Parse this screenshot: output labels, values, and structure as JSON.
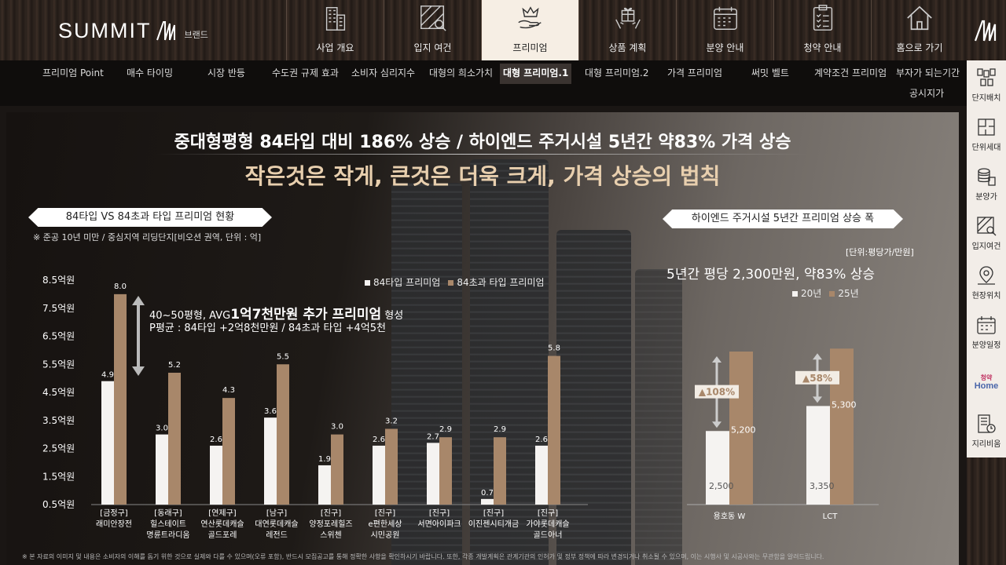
{
  "header": {
    "logo_text": "SUMMIT",
    "logo_sub": "브랜드",
    "nav": [
      {
        "label": "사업 개요",
        "icon": "building-icon"
      },
      {
        "label": "입지 여건",
        "icon": "map-search-icon"
      },
      {
        "label": "프리미엄",
        "icon": "crown-hand-icon",
        "active": true
      },
      {
        "label": "상품 계획",
        "icon": "gift-hands-icon"
      },
      {
        "label": "분양 안내",
        "icon": "calendar-icon"
      },
      {
        "label": "청약 안내",
        "icon": "clipboard-check-icon"
      },
      {
        "label": "홈으로 가기",
        "icon": "home-icon"
      }
    ]
  },
  "subnav": [
    {
      "label": "프리미엄 Point"
    },
    {
      "label": "매수 타이밍"
    },
    {
      "label": "시장 반등"
    },
    {
      "label": "수도권 규제 효과"
    },
    {
      "label": "소비자 심리지수"
    },
    {
      "label": "대형의 희소가치"
    },
    {
      "label": "대형 프리미엄.1",
      "active": true
    },
    {
      "label": "대형 프리미엄.2"
    },
    {
      "label": "가격 프리미엄"
    },
    {
      "label": "써밋 벨트"
    },
    {
      "label": "계약조건 프리미엄"
    },
    {
      "label": "부자가 되는기간"
    },
    {
      "label": "공시지가"
    }
  ],
  "sidebar": [
    {
      "label": "단지배치",
      "icon": "site-plan-icon"
    },
    {
      "label": "단위세대",
      "icon": "floor-plan-icon"
    },
    {
      "label": "분양가",
      "icon": "coins-icon"
    },
    {
      "label": "입지여건",
      "icon": "map-search-icon"
    },
    {
      "label": "현장위치",
      "icon": "location-pin-icon"
    },
    {
      "label": "분양일정",
      "icon": "calendar-icon"
    },
    {
      "label": "",
      "icon": "cheongyak-home-logo",
      "logo_top": "청약",
      "logo_bottom": "Home"
    },
    {
      "label": "지리비움",
      "icon": "building-clock-icon"
    }
  ],
  "content": {
    "headline1": "중대형평형 84타입 대비 186% 상승 / 하이엔드 주거시설 5년간 약83% 가격 상승",
    "headline2": "작은것은 작게, 큰것은 더욱 크게, 가격 상승의 법칙",
    "left_pill": "84타입 VS 84초과 타입 프리미엄 현황",
    "left_note": "※ 준공 10년 미만 / 중심지역 리딩단지[비오션 권역, 단위 : 억]",
    "legend_a": "84타입 프리미엄",
    "legend_b": "84초과 타입 프리미엄",
    "anno1_prefix": "40~50평형, AVG",
    "anno1_bold": "1억7천만원 추가 프리미엄",
    "anno1_suffix": " 형성",
    "anno2": "P평균 : 84타입 +2억8천만원 / 84초과 타입 +4억5천",
    "right_pill": "하이엔드 주거시설  5년간 프리미엄 상승 폭",
    "right_unit": "[단위:평당가/만원]",
    "right_head": "5년간 평당 2,300만원, 약83% 상승",
    "right_legend_a": "20년",
    "right_legend_b": "25년",
    "footnote": "※ 본 자료의 이미지 및 내용은 소비자의 이해를 돕기 위한 것으로 실제와 다를 수 있으며(오류 포함), 반드시 모집공고를 통해 정확한 사항을 확인하시기 바랍니다. 또한, 각종 개발계획은 관계기관의 인허가 및 정부 정책에 따라 변경되거나 취소될 수 있으며, 이는 시행사 및 시공사와는 무관함을 알려드립니다."
  },
  "colors": {
    "bar_a": "#f5f3f1",
    "bar_b": "#a8876a",
    "accent_gold": "#e8cfae",
    "active_nav_bg": "#f6eee4"
  },
  "chart_data": [
    {
      "type": "bar",
      "title": "84타입 VS 84초과 타입 프리미엄 현황",
      "ylabel": "",
      "y_ticks": [
        "8.5억원",
        "7.5억원",
        "6.5억원",
        "5.5억원",
        "4.5억원",
        "3.5억원",
        "2.5억원",
        "1.5억원",
        "0.5억원"
      ],
      "ylim": [
        0.5,
        8.5
      ],
      "categories": [
        [
          "[금정구]",
          "래미안장전"
        ],
        [
          "[동래구]",
          "힐스테이트",
          "명륜트라디움"
        ],
        [
          "[연제구]",
          "연산롯데캐슬",
          "골드포레"
        ],
        [
          "[남구]",
          "대연롯데캐슬",
          "레전드"
        ],
        [
          "[진구]",
          "양정포레힐즈",
          "스위첸"
        ],
        [
          "[진구]",
          "e편한세상",
          "시민공원"
        ],
        [
          "[진구]",
          "서면아이파크"
        ],
        [
          "[진구]",
          "이진젠시티개금"
        ],
        [
          "[진구]",
          "가야롯데캐슬",
          "골드아너"
        ]
      ],
      "series": [
        {
          "name": "84타입 프리미엄",
          "values": [
            4.9,
            3.0,
            2.6,
            3.6,
            1.9,
            2.6,
            2.7,
            0.7,
            2.6
          ]
        },
        {
          "name": "84초과 타입 프리미엄",
          "values": [
            8.0,
            5.2,
            4.3,
            5.5,
            3.0,
            3.2,
            2.9,
            2.9,
            5.8
          ]
        }
      ],
      "legend": "top-right"
    },
    {
      "type": "bar",
      "title": "하이엔드 주거시설  5년간 프리미엄 상승 폭",
      "categories": [
        "용호동 W",
        "LCT"
      ],
      "series": [
        {
          "name": "20년",
          "values": [
            2500,
            3350
          ],
          "labels": [
            "2,500",
            "3,350"
          ]
        },
        {
          "name": "25년",
          "values": [
            5200,
            5300
          ],
          "labels": [
            "5,200",
            "5,300"
          ]
        }
      ],
      "changes": [
        "▲108%",
        "▲58%"
      ],
      "legend": "top"
    }
  ]
}
